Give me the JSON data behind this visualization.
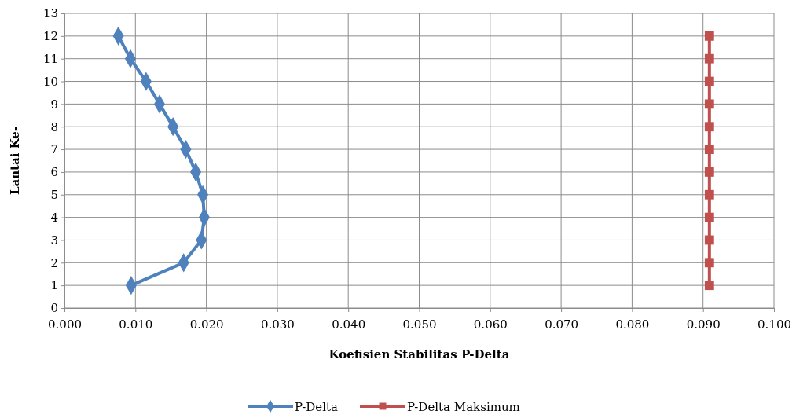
{
  "chart_data": {
    "type": "line",
    "xlabel": "Koefisien Stabilitas P-Delta",
    "ylabel": "Lantai Ke-",
    "xlim": [
      0,
      0.1
    ],
    "xticks": [
      {
        "value": 0,
        "label": "0.000"
      },
      {
        "value": 0.01,
        "label": "0.010"
      },
      {
        "value": 0.02,
        "label": "0.020"
      },
      {
        "value": 0.03,
        "label": "0.030"
      },
      {
        "value": 0.04,
        "label": "0.040"
      },
      {
        "value": 0.05,
        "label": "0.050"
      },
      {
        "value": 0.06,
        "label": "0.060"
      },
      {
        "value": 0.07,
        "label": "0.070"
      },
      {
        "value": 0.08,
        "label": "0.080"
      },
      {
        "value": 0.09,
        "label": "0.090"
      },
      {
        "value": 0.1,
        "label": "0.100"
      }
    ],
    "ylim": [
      0,
      13
    ],
    "yticks": [
      0,
      1,
      2,
      3,
      4,
      5,
      6,
      7,
      8,
      9,
      10,
      11,
      12,
      13
    ],
    "grid": true,
    "legend": "bottom",
    "series": [
      {
        "name": "P-Delta",
        "color": "#4f81bd",
        "marker": "diamond",
        "x": [
          0.0076,
          0.0093,
          0.0115,
          0.0134,
          0.0153,
          0.0171,
          0.0185,
          0.0195,
          0.0197,
          0.0193,
          0.0168,
          0.0094
        ],
        "values": [
          12,
          11,
          10,
          9,
          8,
          7,
          6,
          5,
          4,
          3,
          2,
          1
        ]
      },
      {
        "name": "P-Delta Maksimum",
        "color": "#c0504d",
        "marker": "square",
        "x": [
          0.0909,
          0.0909,
          0.0909,
          0.0909,
          0.0909,
          0.0909,
          0.0909,
          0.0909,
          0.0909,
          0.0909,
          0.0909,
          0.0909
        ],
        "values": [
          12,
          11,
          10,
          9,
          8,
          7,
          6,
          5,
          4,
          3,
          2,
          1
        ]
      }
    ]
  }
}
